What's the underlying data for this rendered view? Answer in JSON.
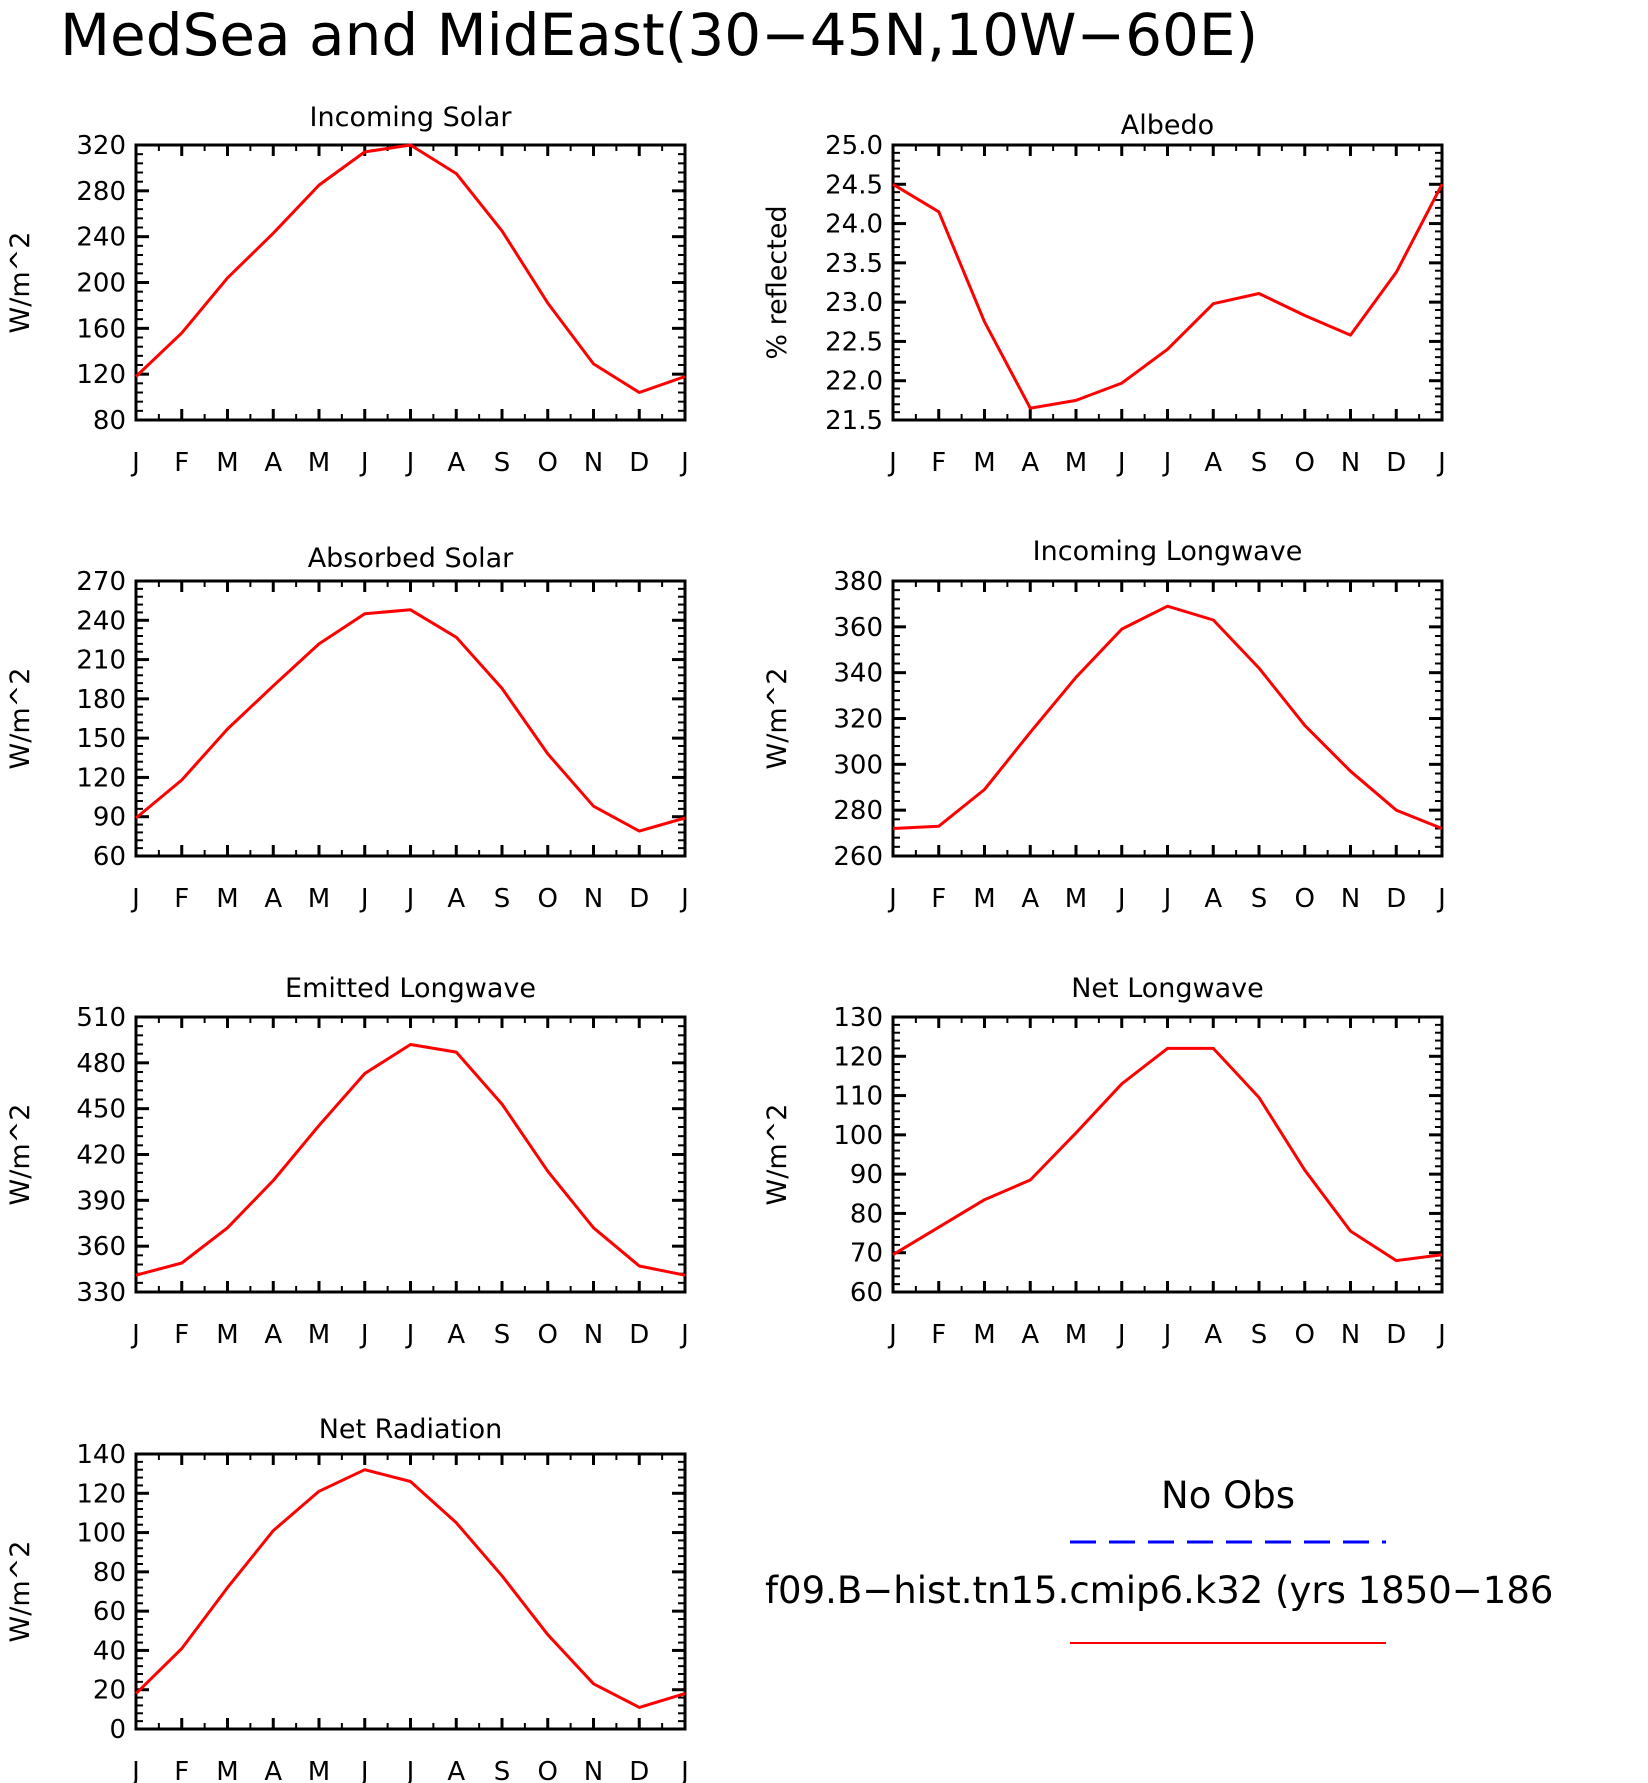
{
  "figure": {
    "title": "MedSea and MidEast(30−45N,10W−60E)"
  },
  "legend": {
    "items": [
      {
        "label": "No Obs",
        "color": "#0000ff",
        "style": "dashed"
      },
      {
        "label": "f09.B−hist.tn15.cmip6.k32 (yrs 1850−186",
        "color": "#ff0000",
        "style": "solid"
      }
    ]
  },
  "chart_data": [
    {
      "type": "line",
      "title": "Incoming Solar",
      "ylabel": "W/m^2",
      "categories": [
        "J",
        "F",
        "M",
        "A",
        "M",
        "J",
        "J",
        "A",
        "S",
        "O",
        "N",
        "D",
        "J"
      ],
      "ylim": [
        80,
        320
      ],
      "yticks": [
        "80",
        "120",
        "160",
        "200",
        "240",
        "280",
        "320"
      ],
      "grid": false,
      "series": [
        {
          "color": "#ff0000",
          "values": [
            118,
            156,
            204,
            243,
            285,
            314,
            320,
            295,
            245,
            182,
            129,
            104,
            118
          ]
        }
      ]
    },
    {
      "type": "line",
      "title": "Albedo",
      "ylabel": "% reflected",
      "categories": [
        "J",
        "F",
        "M",
        "A",
        "M",
        "J",
        "J",
        "A",
        "S",
        "O",
        "N",
        "D",
        "J"
      ],
      "ylim": [
        21.5,
        25.0
      ],
      "yticks": [
        "21.5",
        "22.0",
        "22.5",
        "23.0",
        "23.5",
        "24.0",
        "24.5",
        "25.0"
      ],
      "grid": false,
      "series": [
        {
          "color": "#ff0000",
          "values": [
            24.5,
            24.15,
            22.75,
            21.65,
            21.75,
            21.97,
            22.4,
            22.98,
            23.11,
            22.83,
            22.58,
            23.38,
            24.5
          ]
        }
      ]
    },
    {
      "type": "line",
      "title": "Absorbed Solar",
      "ylabel": "W/m^2",
      "categories": [
        "J",
        "F",
        "M",
        "A",
        "M",
        "J",
        "J",
        "A",
        "S",
        "O",
        "N",
        "D",
        "J"
      ],
      "ylim": [
        60,
        270
      ],
      "yticks": [
        "60",
        "90",
        "120",
        "150",
        "180",
        "210",
        "240",
        "270"
      ],
      "grid": false,
      "series": [
        {
          "color": "#ff0000",
          "values": [
            89,
            118,
            157,
            190,
            222,
            245,
            248,
            227,
            188,
            138,
            98,
            79,
            89
          ]
        }
      ]
    },
    {
      "type": "line",
      "title": "Incoming Longwave",
      "ylabel": "W/m^2",
      "categories": [
        "J",
        "F",
        "M",
        "A",
        "M",
        "J",
        "J",
        "A",
        "S",
        "O",
        "N",
        "D",
        "J"
      ],
      "ylim": [
        260,
        380
      ],
      "yticks": [
        "260",
        "280",
        "300",
        "320",
        "340",
        "360",
        "380"
      ],
      "grid": false,
      "series": [
        {
          "color": "#ff0000",
          "values": [
            272,
            273,
            289,
            314,
            338,
            359,
            369,
            363,
            342,
            317,
            297,
            280,
            272
          ]
        }
      ]
    },
    {
      "type": "line",
      "title": "Emitted Longwave",
      "ylabel": "W/m^2",
      "categories": [
        "J",
        "F",
        "M",
        "A",
        "M",
        "J",
        "J",
        "A",
        "S",
        "O",
        "N",
        "D",
        "J"
      ],
      "ylim": [
        330,
        510
      ],
      "yticks": [
        "330",
        "360",
        "390",
        "420",
        "450",
        "480",
        "510"
      ],
      "grid": false,
      "series": [
        {
          "color": "#ff0000",
          "values": [
            341,
            349,
            372,
            403,
            439,
            473,
            492,
            487,
            453,
            409,
            372,
            347,
            341
          ]
        }
      ]
    },
    {
      "type": "line",
      "title": "Net Longwave",
      "ylabel": "W/m^2",
      "categories": [
        "J",
        "F",
        "M",
        "A",
        "M",
        "J",
        "J",
        "A",
        "S",
        "O",
        "N",
        "D",
        "J"
      ],
      "ylim": [
        60,
        130
      ],
      "yticks": [
        "60",
        "70",
        "80",
        "90",
        "100",
        "110",
        "120",
        "130"
      ],
      "grid": false,
      "series": [
        {
          "color": "#ff0000",
          "values": [
            69.5,
            76.5,
            83.5,
            88.5,
            100.5,
            113,
            122,
            122,
            109.5,
            91,
            75.5,
            68,
            69.5
          ]
        }
      ]
    },
    {
      "type": "line",
      "title": "Net Radiation",
      "ylabel": "W/m^2",
      "categories": [
        "J",
        "F",
        "M",
        "A",
        "M",
        "J",
        "J",
        "A",
        "S",
        "O",
        "N",
        "D",
        "J"
      ],
      "ylim": [
        0,
        140
      ],
      "yticks": [
        "0",
        "20",
        "40",
        "60",
        "80",
        "100",
        "120",
        "140"
      ],
      "grid": false,
      "series": [
        {
          "color": "#ff0000",
          "values": [
            18,
            41,
            72,
            101,
            121,
            132,
            126,
            105,
            78,
            48,
            23,
            11,
            18
          ]
        }
      ]
    }
  ]
}
